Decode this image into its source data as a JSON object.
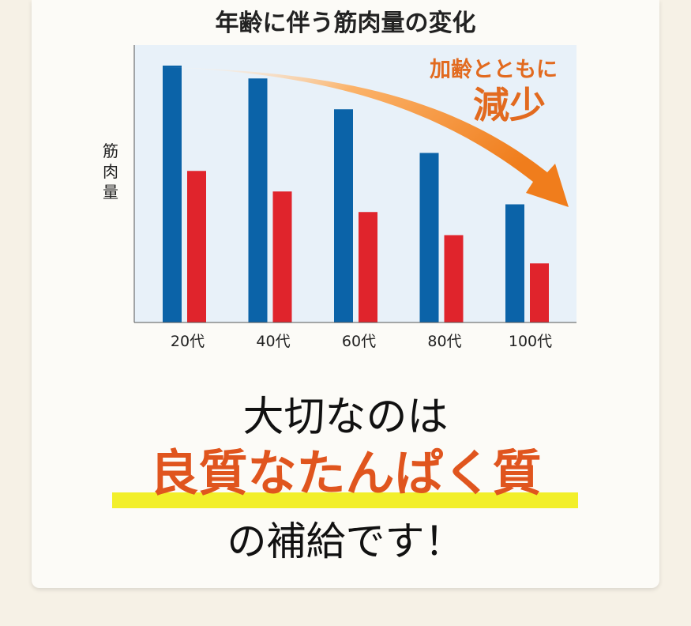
{
  "chart_data": {
    "type": "bar",
    "title": "年齢に伴う筋肉量の変化",
    "ylabel": "筋肉量",
    "categories": [
      "20代",
      "40代",
      "60代",
      "80代",
      "100代"
    ],
    "series": [
      {
        "color": "#0b63a8",
        "values": [
          100,
          95,
          83,
          66,
          46
        ]
      },
      {
        "color": "#e0242c",
        "values": [
          59,
          51,
          43,
          34,
          23
        ]
      }
    ],
    "ylim": [
      0,
      108
    ],
    "annotation": {
      "line1": "加齢とともに",
      "line2": "減少",
      "color": "#e26a1f"
    },
    "background": "#e8f1f9"
  },
  "message": {
    "line1": "大切なのは",
    "line2": "良質なたんぱく質",
    "line3": "の補給です！"
  },
  "colors": {
    "accent": "#e0551e",
    "highlight": "#f2ef2a"
  }
}
